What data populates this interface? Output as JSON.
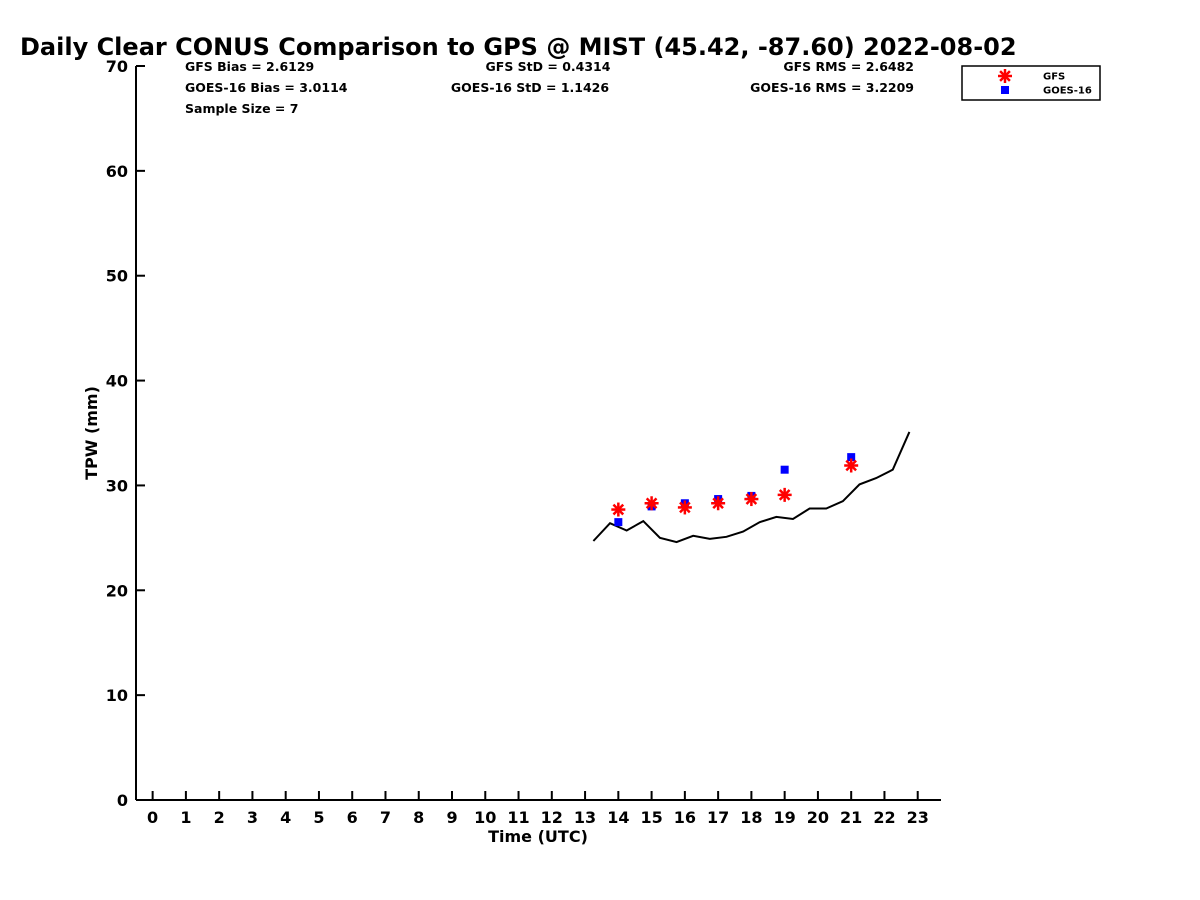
{
  "chart_data": {
    "type": "scatter",
    "title": "Daily Clear CONUS Comparison to GPS @ MIST (45.42, -87.60) 2022-08-02",
    "xlabel": "Time (UTC)",
    "ylabel": "TPW (mm)",
    "xlim": [
      -0.5,
      23.7
    ],
    "ylim": [
      0,
      70
    ],
    "xticks": [
      0,
      1,
      2,
      3,
      4,
      5,
      6,
      7,
      8,
      9,
      10,
      11,
      12,
      13,
      14,
      15,
      16,
      17,
      18,
      19,
      20,
      21,
      22,
      23
    ],
    "yticks": [
      0,
      10,
      20,
      30,
      40,
      50,
      60,
      70
    ],
    "grid": false,
    "legend_position": "top-right",
    "stats": {
      "gfs_bias": "GFS Bias = 2.6129",
      "goes_bias": "GOES-16 Bias = 3.0114",
      "sample_size": "Sample Size = 7",
      "gfs_std": "GFS StD = 0.4314",
      "goes_std": "GOES-16 StD = 1.1426",
      "gfs_rms": "GFS RMS = 2.6482",
      "goes_rms": "GOES-16 RMS = 3.2209"
    },
    "series": [
      {
        "name": "GFS",
        "marker": "asterisk",
        "color": "#ff0000",
        "x": [
          14,
          15,
          16,
          17,
          18,
          19,
          21
        ],
        "y": [
          27.7,
          28.3,
          27.9,
          28.3,
          28.7,
          29.1,
          31.9
        ]
      },
      {
        "name": "GOES-16",
        "marker": "square",
        "color": "#0000ff",
        "x": [
          14,
          15,
          16,
          17,
          18,
          19,
          21
        ],
        "y": [
          26.5,
          28.0,
          28.3,
          28.7,
          29.0,
          31.5,
          32.7
        ]
      },
      {
        "marker": "line",
        "color": "#000000",
        "x": [
          13.25,
          13.75,
          14.25,
          14.75,
          15.25,
          15.75,
          16.25,
          16.75,
          17.25,
          17.75,
          18.25,
          18.75,
          19.25,
          19.75,
          20.25,
          20.75,
          21.25,
          21.75,
          22.25,
          22.75
        ],
        "y": [
          24.7,
          26.4,
          25.7,
          26.6,
          25.0,
          24.6,
          25.2,
          24.9,
          25.1,
          25.6,
          26.5,
          27.0,
          26.8,
          27.8,
          27.8,
          28.5,
          30.1,
          30.7,
          31.5,
          35.1
        ]
      }
    ]
  }
}
